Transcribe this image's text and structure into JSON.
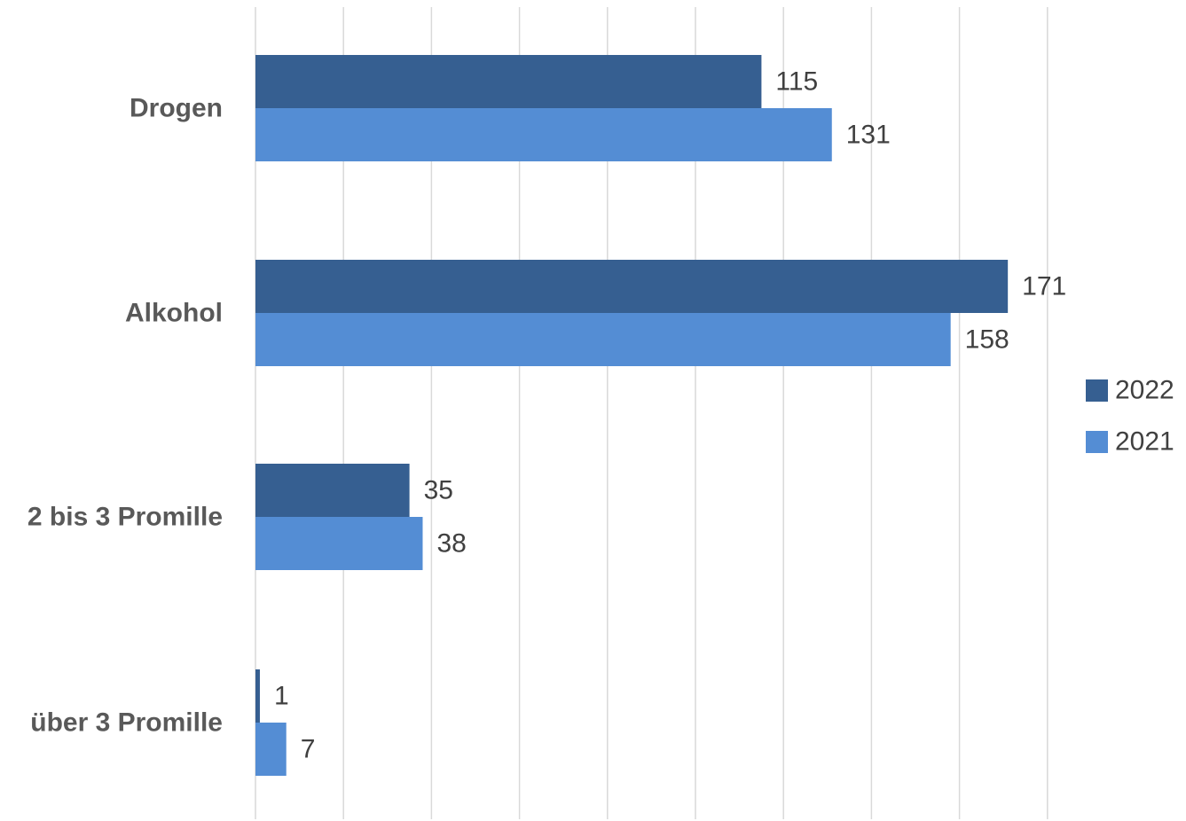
{
  "chart_data": {
    "type": "bar",
    "orientation": "horizontal",
    "categories": [
      "Drogen",
      "Alkohol",
      "2 bis 3 Promille",
      "über 3 Promille"
    ],
    "series": [
      {
        "name": "2022",
        "values": [
          115,
          171,
          35,
          1
        ],
        "color": "#365f91"
      },
      {
        "name": "2021",
        "values": [
          131,
          158,
          38,
          7
        ],
        "color": "#548dd4"
      }
    ],
    "xlim": [
      0,
      180
    ],
    "grid": true,
    "legend_position": "right"
  }
}
